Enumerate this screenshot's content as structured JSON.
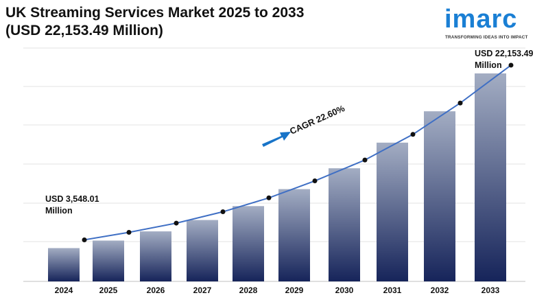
{
  "header": {
    "title_line1": "UK Streaming Services Market 2025 to 2033",
    "title_line2": "(USD 22,153.49 Million)"
  },
  "logo": {
    "wordmark": "imarc",
    "tagline": "TRANSFORMING IDEAS INTO IMPACT",
    "color": "#1a7fd4"
  },
  "chart_data": {
    "type": "bar",
    "categories": [
      "2024",
      "2025",
      "2026",
      "2027",
      "2028",
      "2029",
      "2030",
      "2031",
      "2032",
      "2033"
    ],
    "values": [
      3548.01,
      4350,
      5330,
      6540,
      8020,
      9830,
      12050,
      14780,
      18120,
      22153.49
    ],
    "ylim": [
      0,
      25000
    ],
    "grid": true,
    "bar_color_top": "#a3adc3",
    "bar_color_bottom": "#16245a",
    "trend_line": true,
    "trend_line_color": "#3f6fc4",
    "cagr_arrow_color": "#1874c8",
    "annotations": {
      "start_line1": "USD 3,548.01",
      "start_line2": "Million",
      "end_line1": "USD 22,153.49",
      "end_line2": "Million",
      "cagr": "CAGR 22.60%"
    }
  }
}
